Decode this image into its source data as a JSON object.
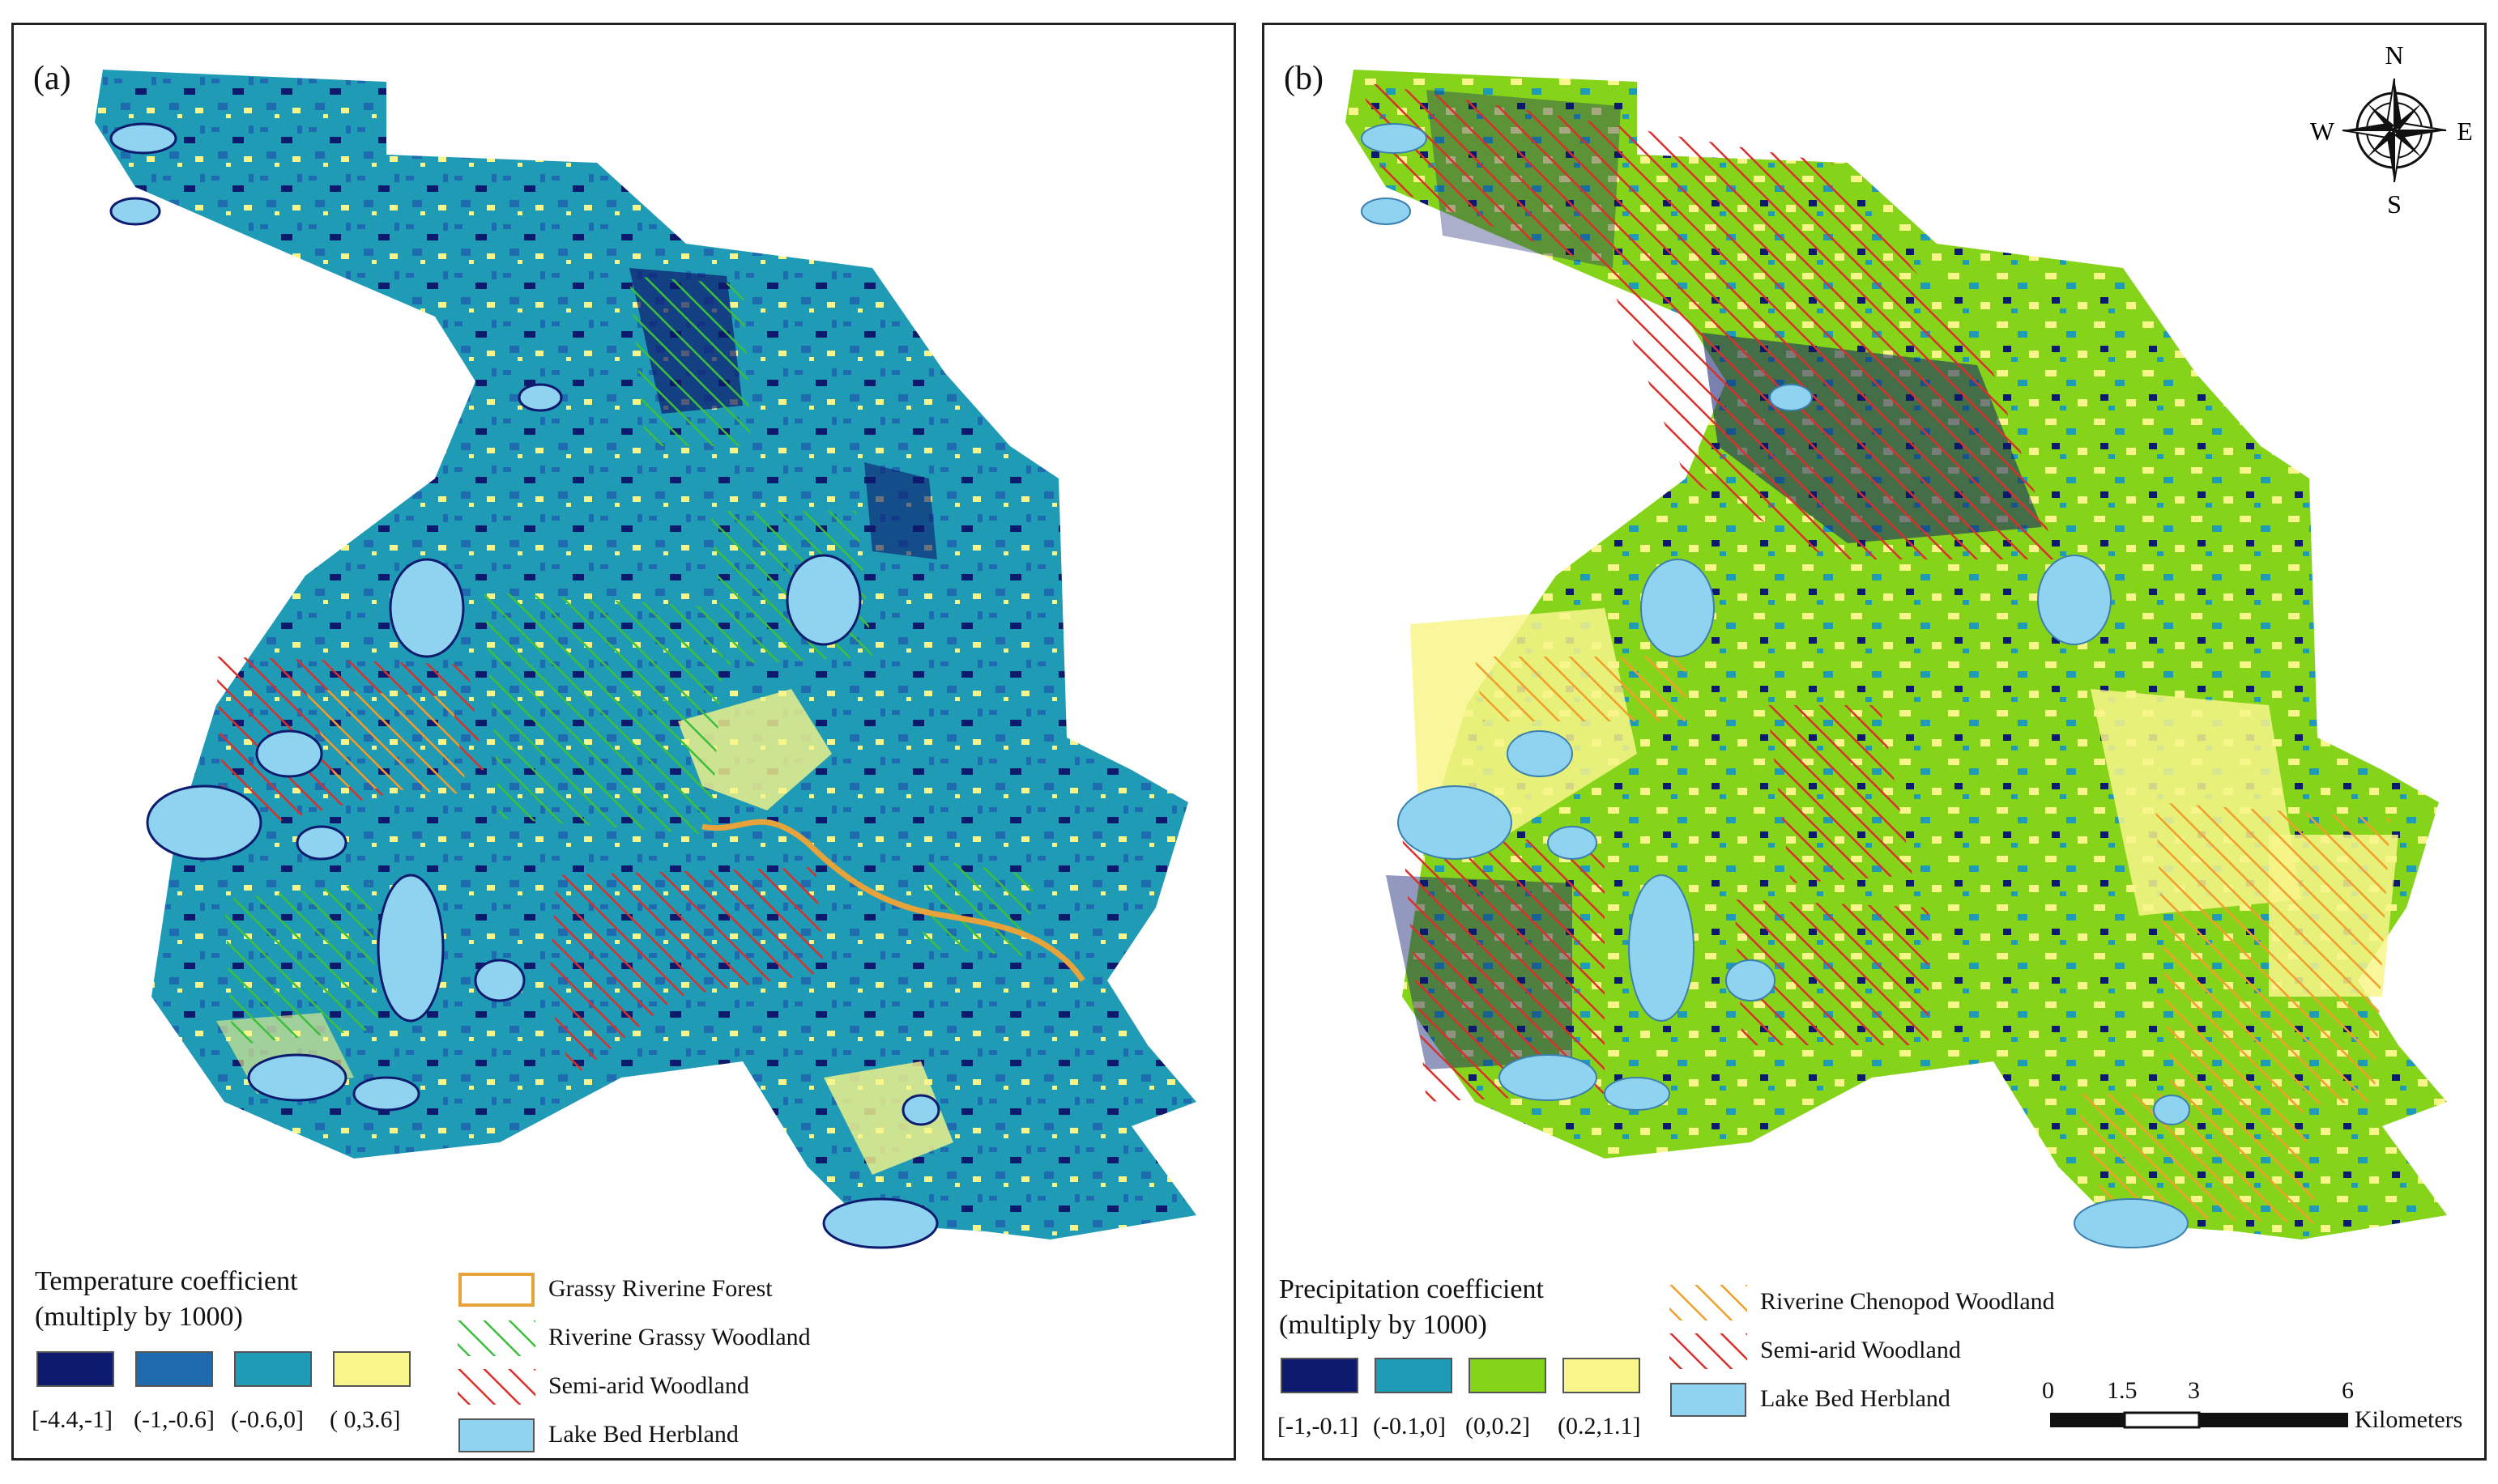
{
  "panel_a": {
    "label": "(a)",
    "legend_title_line1": "Temperature coefficient",
    "legend_title_line2": "(multiply by 1000)",
    "classes": [
      {
        "label": "[-4.4,-1]",
        "color": "#0e1a6e"
      },
      {
        "label": "(-1,-0.6]",
        "color": "#1e6bb0"
      },
      {
        "label": "(-0.6,0]",
        "color": "#1f9bb5"
      },
      {
        "label": "( 0,3.6]",
        "color": "#f8f58a"
      }
    ],
    "vegetation": [
      {
        "label": "Grassy Riverine Forest",
        "style": "outline",
        "color": "#e8a23a"
      },
      {
        "label": "Riverine Grassy Woodland",
        "style": "hatch",
        "color": "#3cbf3c"
      },
      {
        "label": "Semi-arid Woodland",
        "style": "hatch",
        "color": "#d9302c"
      },
      {
        "label": "Lake Bed Herbland",
        "style": "fill",
        "color": "#8fd3f0"
      }
    ]
  },
  "panel_b": {
    "label": "(b)",
    "legend_title_line1": "Precipitation coefficient",
    "legend_title_line2": "(multiply by 1000)",
    "classes": [
      {
        "label": "[-1,-0.1]",
        "color": "#0e1a6e"
      },
      {
        "label": "(-0.1,0]",
        "color": "#1f9bb5"
      },
      {
        "label": "(0,0.2]",
        "color": "#86d41a"
      },
      {
        "label": "(0.2,1.1]",
        "color": "#f8f58a"
      }
    ],
    "vegetation": [
      {
        "label": "Riverine Chenopod Woodland",
        "style": "hatch",
        "color": "#f0a02a"
      },
      {
        "label": "Semi-arid Woodland",
        "style": "hatch",
        "color": "#d9302c"
      },
      {
        "label": "Lake Bed Herbland",
        "style": "fill",
        "color": "#8fd3f0"
      }
    ],
    "compass": {
      "n": "N",
      "s": "S",
      "e": "E",
      "w": "W"
    },
    "scale": {
      "ticks": [
        "0",
        "1.5",
        "3",
        "6"
      ],
      "unit": "Kilometers"
    }
  }
}
